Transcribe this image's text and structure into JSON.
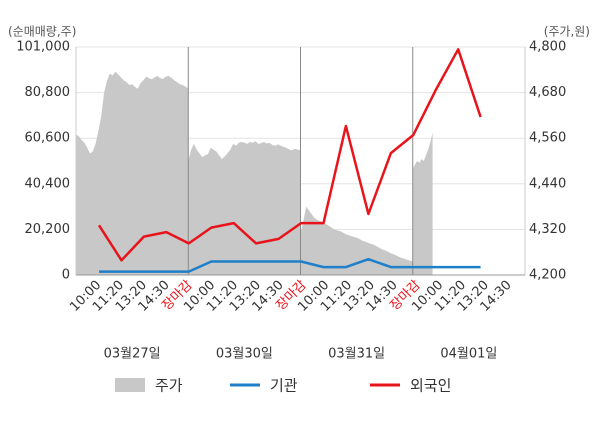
{
  "chart_data": {
    "type": "line",
    "units": {
      "left": "(순매매량,주)",
      "right": "(주가,원)"
    },
    "left_axis": {
      "ticks": [
        "101,000",
        "80,800",
        "60,600",
        "40,400",
        "20,200",
        "0"
      ],
      "ylim": [
        0,
        101000
      ]
    },
    "right_axis": {
      "ticks": [
        "4,800",
        "4,680",
        "4,560",
        "4,440",
        "4,320",
        "4,200"
      ],
      "ylim": [
        4200,
        4800
      ]
    },
    "x_ticks": [
      {
        "label": "10:00",
        "color": "#333333"
      },
      {
        "label": "11:20",
        "color": "#333333"
      },
      {
        "label": "13:20",
        "color": "#333333"
      },
      {
        "label": "14:30",
        "color": "#333333"
      },
      {
        "label": "장마감",
        "color": "#e8141b"
      },
      {
        "label": "10:00",
        "color": "#333333"
      },
      {
        "label": "11:20",
        "color": "#333333"
      },
      {
        "label": "13:20",
        "color": "#333333"
      },
      {
        "label": "14:30",
        "color": "#333333"
      },
      {
        "label": "장마감",
        "color": "#e8141b"
      },
      {
        "label": "10:00",
        "color": "#333333"
      },
      {
        "label": "11:20",
        "color": "#333333"
      },
      {
        "label": "13:20",
        "color": "#333333"
      },
      {
        "label": "14:30",
        "color": "#333333"
      },
      {
        "label": "장마감",
        "color": "#e8141b"
      },
      {
        "label": "10:00",
        "color": "#333333"
      },
      {
        "label": "11:20",
        "color": "#333333"
      },
      {
        "label": "13:20",
        "color": "#333333"
      },
      {
        "label": "14:30",
        "color": "#333333"
      }
    ],
    "dates": [
      "03월27일",
      "03월30일",
      "03월31일",
      "04월01일"
    ],
    "legend": [
      {
        "name": "주가",
        "color": "#c8c8c8",
        "kind": "area"
      },
      {
        "name": "기관",
        "color": "#1f7fc9",
        "kind": "line"
      },
      {
        "name": "외국인",
        "color": "#e8141b",
        "kind": "line"
      }
    ],
    "series": [
      {
        "name": "주가",
        "axis": "right",
        "days": [
          [
            4570,
            4565,
            4555,
            4548,
            4535,
            4520,
            4525,
            4545,
            4580,
            4620,
            4680,
            4710,
            4730,
            4725,
            4735,
            4728,
            4720,
            4712,
            4708,
            4700,
            4702,
            4695,
            4690,
            4705,
            4712,
            4722,
            4718,
            4715,
            4720,
            4724,
            4718,
            4716,
            4722,
            4724,
            4719,
            4712,
            4708,
            4702,
            4700,
            4696,
            4690
          ],
          [
            4500,
            4530,
            4545,
            4530,
            4520,
            4510,
            4515,
            4518,
            4535,
            4530,
            4525,
            4515,
            4505,
            4512,
            4520,
            4530,
            4545,
            4540,
            4548,
            4550,
            4548,
            4545,
            4550,
            4548,
            4552,
            4545,
            4547,
            4550,
            4546,
            4548,
            4542,
            4540,
            4544,
            4540,
            4537,
            4535,
            4530,
            4528,
            4532,
            4530,
            4528
          ],
          [
            4310,
            4340,
            4380,
            4370,
            4360,
            4350,
            4345,
            4342,
            4338,
            4335,
            4330,
            4325,
            4320,
            4318,
            4316,
            4312,
            4308,
            4305,
            4303,
            4300,
            4298,
            4295,
            4290,
            4288,
            4285,
            4282,
            4280,
            4276,
            4272,
            4268,
            4265,
            4262,
            4258,
            4255,
            4252,
            4248,
            4245,
            4243,
            4240,
            4238,
            4236
          ],
          [
            4480,
            4490,
            4500,
            4495,
            4505,
            4500,
            4515,
            4530,
            4550,
            4575
          ]
        ]
      },
      {
        "name": "기관",
        "axis": "left",
        "days": [
          [
            1500,
            1500,
            1500,
            1500,
            1500,
            6000
          ],
          [
            6000,
            6000,
            6000,
            6000,
            6000,
            3500
          ],
          [
            3500,
            3500,
            7000,
            3500,
            3500,
            3500
          ],
          [
            3500,
            3500,
            3500
          ]
        ]
      },
      {
        "name": "외국인",
        "axis": "left",
        "days": [
          [
            22000,
            6500,
            17000,
            19000,
            14000,
            21000
          ],
          [
            21000,
            23000,
            14000,
            16000,
            23000,
            23000
          ],
          [
            23000,
            66000,
            27000,
            54000,
            62000,
            82000
          ],
          [
            82000,
            100000,
            70000
          ]
        ]
      }
    ]
  }
}
